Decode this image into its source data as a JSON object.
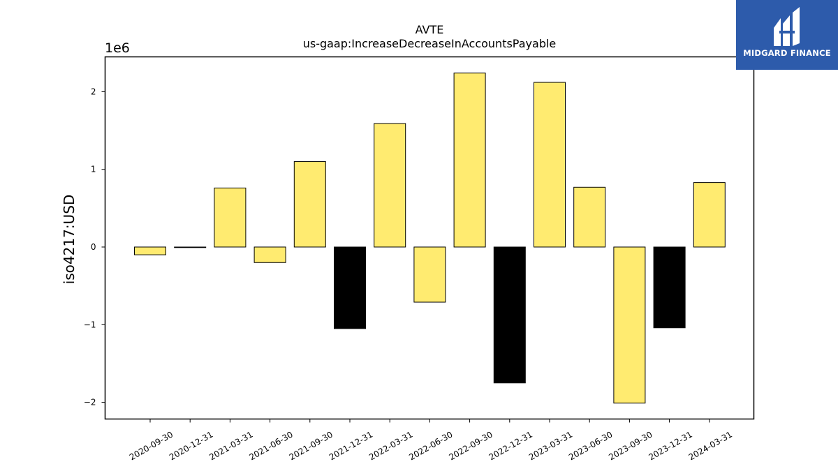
{
  "chart_data": {
    "type": "bar",
    "title": "AVTE",
    "subtitle": "us-gaap:IncreaseDecreaseInAccountsPayable",
    "xlabel": "",
    "ylabel": "iso4217:USD",
    "scale_label": "1e6",
    "ylim": [
      -2200000,
      2450000
    ],
    "yticks": [
      -2000000,
      -1000000,
      0,
      1000000,
      2000000
    ],
    "ytick_labels": [
      "−2",
      "−1",
      "0",
      "1",
      "2"
    ],
    "grid": false,
    "categories": [
      "2020-09-30",
      "2020-12-31",
      "2021-03-31",
      "2021-06-30",
      "2021-09-30",
      "2021-12-31",
      "2022-03-31",
      "2022-06-30",
      "2022-09-30",
      "2022-12-31",
      "2023-03-31",
      "2023-06-30",
      "2023-09-30",
      "2023-12-31",
      "2024-03-31"
    ],
    "values": [
      -100000,
      0,
      760000,
      -200000,
      1100000,
      -1050000,
      1590000,
      -710000,
      2240000,
      -1750000,
      2120000,
      770000,
      -2010000,
      -1040000,
      830000
    ],
    "bar_colors": [
      "#ffeb70",
      "#ffeb70",
      "#ffeb70",
      "#ffeb70",
      "#ffeb70",
      "#000000",
      "#ffeb70",
      "#ffeb70",
      "#ffeb70",
      "#000000",
      "#ffeb70",
      "#ffeb70",
      "#ffeb70",
      "#000000",
      "#ffeb70"
    ]
  },
  "logo": {
    "text": "MIDGARD FINANCE",
    "background": "#2d5bab"
  }
}
